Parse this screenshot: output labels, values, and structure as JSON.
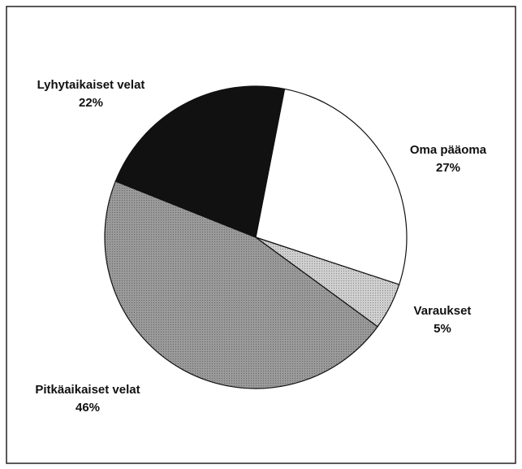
{
  "chart_data": {
    "type": "pie",
    "categories": [
      "Oma pääoma",
      "Varaukset",
      "Pitkäaikaiset velat",
      "Lyhytaikaiset velat"
    ],
    "values": [
      27,
      5,
      46,
      22
    ],
    "value_labels": [
      "27%",
      "5%",
      "46%",
      "22%"
    ],
    "colors": [
      "#ffffff",
      "#cfcfcf",
      "#9a9a9a",
      "#111111"
    ]
  }
}
